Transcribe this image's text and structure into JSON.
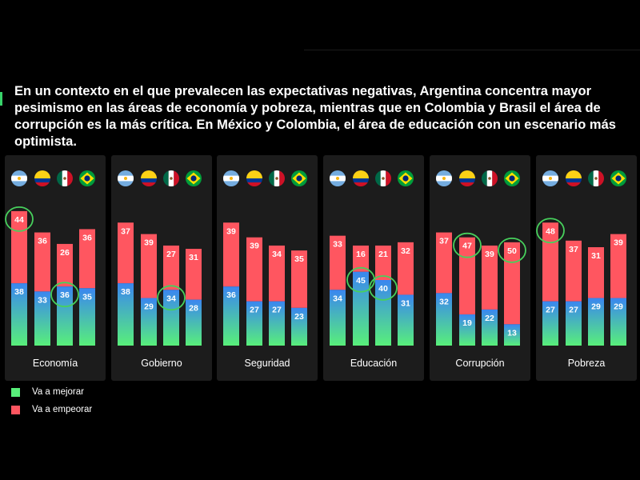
{
  "headline": "En un contexto en el que prevalecen las expectativas negativas, Argentina concentra mayor pesimismo en las áreas de economía y pobreza, mientras que en Colombia y Brasil el área de corrupción es la más crítica. En México y Colombia, el área de educación con un escenario más optimista.",
  "colors": {
    "improve_top": "#3a86f0",
    "improve_bottom": "#58ef7a",
    "worsen": "#ff5660",
    "highlight": "#47d05c",
    "panel": "#1c1c1c"
  },
  "flag_icons": [
    "argentina-flag-icon",
    "colombia-flag-icon",
    "mexico-flag-icon",
    "brazil-flag-icon"
  ],
  "chart_data": {
    "type": "bar",
    "stacked": true,
    "groups": [
      "Economía",
      "Gobierno",
      "Seguridad",
      "Educación",
      "Corrupción",
      "Pobreza"
    ],
    "series": [
      {
        "name": "Va a mejorar",
        "values": [
          [
            38,
            33,
            36,
            35
          ],
          [
            38,
            29,
            34,
            28
          ],
          [
            36,
            27,
            27,
            23
          ],
          [
            34,
            45,
            40,
            31
          ],
          [
            32,
            19,
            22,
            13
          ],
          [
            27,
            27,
            29,
            29
          ]
        ]
      },
      {
        "name": "Va a empeorar",
        "values": [
          [
            44,
            36,
            26,
            36
          ],
          [
            37,
            39,
            27,
            31
          ],
          [
            39,
            39,
            34,
            35
          ],
          [
            33,
            16,
            21,
            32
          ],
          [
            37,
            47,
            39,
            50
          ],
          [
            48,
            37,
            31,
            39
          ]
        ]
      }
    ],
    "highlighted": [
      {
        "group": 0,
        "bar": 0,
        "series": 1
      },
      {
        "group": 0,
        "bar": 2,
        "series": 0
      },
      {
        "group": 1,
        "bar": 2,
        "series": 0
      },
      {
        "group": 3,
        "bar": 1,
        "series": 0
      },
      {
        "group": 3,
        "bar": 2,
        "series": 0
      },
      {
        "group": 4,
        "bar": 1,
        "series": 1
      },
      {
        "group": 4,
        "bar": 3,
        "series": 1
      },
      {
        "group": 5,
        "bar": 0,
        "series": 1
      }
    ],
    "ylim": [
      0,
      100
    ]
  },
  "legend": [
    {
      "label": "Va a mejorar",
      "color": "#58ef7a"
    },
    {
      "label": "Va a empeorar",
      "color": "#ff5660"
    }
  ]
}
